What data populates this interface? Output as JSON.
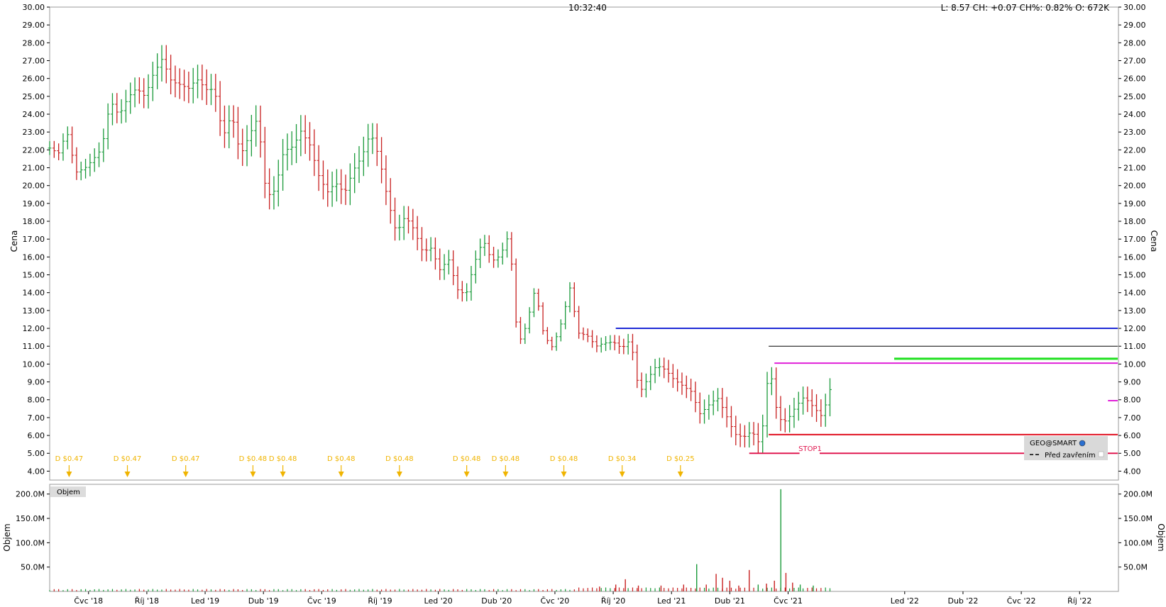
{
  "header": {
    "time": "10:32:40",
    "quote": "L: 8.57 CH: +0.07 CH%: 0.82% O: 672K"
  },
  "colors": {
    "up": "#1a9a3a",
    "down": "#c82020",
    "grid_border": "#999999",
    "dividend": "#f0b400",
    "blue_line": "#1f2ad6",
    "black_line": "#000000",
    "magenta_line": "#e020d8",
    "green_line": "#20e020",
    "red_line": "#e01020",
    "stop_line": "#e01850"
  },
  "chart_data": [
    {
      "type": "bar",
      "subtype": "ohlc",
      "ylabel": "Cena",
      "ylim": [
        3.5,
        30
      ],
      "yticks": [
        "4.00",
        "5.00",
        "6.00",
        "7.00",
        "8.00",
        "9.00",
        "10.00",
        "11.00",
        "12.00",
        "13.00",
        "14.00",
        "15.00",
        "16.00",
        "17.00",
        "18.00",
        "19.00",
        "20.00",
        "21.00",
        "22.00",
        "23.00",
        "24.00",
        "25.00",
        "26.00",
        "27.00",
        "28.00",
        "29.00",
        "30.00"
      ],
      "x_range": [
        "2018-05",
        "2022-12"
      ],
      "xticks": [
        {
          "label": "Čvc '18",
          "date": "2018-07"
        },
        {
          "label": "Říj '18",
          "date": "2018-10"
        },
        {
          "label": "Led '19",
          "date": "2019-01"
        },
        {
          "label": "Dub '19",
          "date": "2019-04"
        },
        {
          "label": "Čvc '19",
          "date": "2019-07"
        },
        {
          "label": "Říj '19",
          "date": "2019-10"
        },
        {
          "label": "Led '20",
          "date": "2020-01"
        },
        {
          "label": "Dub '20",
          "date": "2020-04"
        },
        {
          "label": "Čvc '20",
          "date": "2020-07"
        },
        {
          "label": "Říj '20",
          "date": "2020-10"
        },
        {
          "label": "Led '21",
          "date": "2021-01"
        },
        {
          "label": "Dub '21",
          "date": "2021-04"
        },
        {
          "label": "Čvc '21",
          "date": "2021-07"
        },
        {
          "label": "Led '22",
          "date": "2022-01"
        },
        {
          "label": "Dub '22",
          "date": "2022-04"
        },
        {
          "label": "Čvc '22",
          "date": "2022-07"
        },
        {
          "label": "Říj '22",
          "date": "2022-10"
        }
      ],
      "series_path": [
        22.1,
        21.5,
        22.6,
        20.5,
        21.0,
        21.8,
        22.5,
        25.0,
        23.8,
        24.5,
        25.0,
        24.8,
        26.5,
        27.6,
        26.3,
        25.8,
        25.2,
        25.5,
        25.0,
        25.3,
        23.0,
        24.5,
        22.0,
        22.8,
        23.5,
        19.0,
        19.5,
        22.0,
        22.5,
        23.5,
        22.5,
        20.5,
        19.3,
        19.8,
        19.4,
        21.0,
        22.0,
        23.4,
        21.7,
        19.0,
        17.0,
        18.0,
        17.5,
        16.5,
        16.8,
        15.5,
        15.9,
        14.0,
        13.6,
        15.5,
        17.0,
        16.0,
        16.4,
        17.5,
        11.0,
        12.0,
        14.0,
        11.5,
        11.0,
        12.5,
        14.5,
        11.8,
        11.5,
        10.8,
        11.0,
        11.2,
        11.0,
        11.6,
        8.5,
        9.2,
        9.8,
        9.5,
        9.0,
        8.8,
        8.6,
        7.4,
        7.8,
        8.1,
        7.0,
        5.9,
        5.8,
        6.3,
        5.6,
        10.2,
        7.0,
        6.7,
        7.4,
        8.0,
        7.6,
        7.2,
        8.57
      ],
      "series_end_date": "2021-09-15",
      "dividends": [
        {
          "label": "D $0.47",
          "date": "2018-06"
        },
        {
          "label": "D $0.47",
          "date": "2018-09"
        },
        {
          "label": "D $0.47",
          "date": "2018-12"
        },
        {
          "label": "D $0.48",
          "date": "2019-03-15"
        },
        {
          "label": "D $0.48",
          "date": "2019-05"
        },
        {
          "label": "D $0.48",
          "date": "2019-08"
        },
        {
          "label": "D $0.48",
          "date": "2019-11"
        },
        {
          "label": "D $0.48",
          "date": "2020-02-15"
        },
        {
          "label": "D $0.48",
          "date": "2020-04-15"
        },
        {
          "label": "D $0.48",
          "date": "2020-07-15"
        },
        {
          "label": "D $0.34",
          "date": "2020-10-15"
        },
        {
          "label": "D $0.25",
          "date": "2021-01-15"
        }
      ],
      "hlines": [
        {
          "y": 12.0,
          "from": "2020-10-05",
          "to": "2022-12",
          "color": "blue_line",
          "width": 2
        },
        {
          "y": 11.0,
          "from": "2021-06-01",
          "to": "2022-12",
          "color": "black_line",
          "width": 1
        },
        {
          "y": 10.05,
          "from": "2021-06-10",
          "to": "2022-12",
          "color": "magenta_line",
          "width": 2
        },
        {
          "y": 10.3,
          "from": "2021-12-15",
          "to": "2022-12",
          "color": "green_line",
          "width": 3
        },
        {
          "y": 7.95,
          "from": "2022-11-15",
          "to": "2022-12",
          "color": "magenta_line",
          "width": 2
        },
        {
          "y": 6.05,
          "from": "2021-06-01",
          "to": "2022-12",
          "color": "red_line",
          "width": 2
        },
        {
          "y": 5.0,
          "from": "2021-05-01",
          "to": "2021-07-20",
          "color": "stop_line",
          "width": 2
        },
        {
          "y": 5.0,
          "from": "2021-08-20",
          "to": "2022-12",
          "color": "stop_line",
          "width": 2
        }
      ],
      "annotations": [
        {
          "text": "STOP1",
          "date": "2021-08-05",
          "y": 5.0
        }
      ],
      "legend": {
        "placement": "bottom-right",
        "title": "GEO@SMART",
        "entry": "Před zavřením"
      }
    },
    {
      "type": "bar",
      "subtype": "volume",
      "label": "Objem",
      "ylabel": "Objem",
      "ylim": [
        0,
        220
      ],
      "yticks": [
        {
          "v": 50,
          "label": "50.0M"
        },
        {
          "v": 100,
          "label": "100.0M"
        },
        {
          "v": 150,
          "label": "150.0M"
        },
        {
          "v": 200,
          "label": "200.0M"
        }
      ],
      "spikes": [
        {
          "date": "2020-09-10",
          "v": 10,
          "dir": "down"
        },
        {
          "date": "2020-10-05",
          "v": 14,
          "dir": "down"
        },
        {
          "date": "2020-10-20",
          "v": 25,
          "dir": "down"
        },
        {
          "date": "2020-11-10",
          "v": 12,
          "dir": "down"
        },
        {
          "date": "2020-12-15",
          "v": 12,
          "dir": "down"
        },
        {
          "date": "2021-01-20",
          "v": 14,
          "dir": "down"
        },
        {
          "date": "2021-02-10",
          "v": 56,
          "dir": "up"
        },
        {
          "date": "2021-02-25",
          "v": 14,
          "dir": "down"
        },
        {
          "date": "2021-03-10",
          "v": 36,
          "dir": "down"
        },
        {
          "date": "2021-03-20",
          "v": 28,
          "dir": "down"
        },
        {
          "date": "2021-04-01",
          "v": 22,
          "dir": "down"
        },
        {
          "date": "2021-04-15",
          "v": 12,
          "dir": "down"
        },
        {
          "date": "2021-05-01",
          "v": 44,
          "dir": "down"
        },
        {
          "date": "2021-05-15",
          "v": 14,
          "dir": "up"
        },
        {
          "date": "2021-05-28",
          "v": 16,
          "dir": "down"
        },
        {
          "date": "2021-06-10",
          "v": 22,
          "dir": "down"
        },
        {
          "date": "2021-06-20",
          "v": 210,
          "dir": "up"
        },
        {
          "date": "2021-06-28",
          "v": 38,
          "dir": "down"
        },
        {
          "date": "2021-07-08",
          "v": 18,
          "dir": "down"
        },
        {
          "date": "2021-07-20",
          "v": 14,
          "dir": "up"
        },
        {
          "date": "2021-08-10",
          "v": 12,
          "dir": "up"
        }
      ]
    }
  ]
}
